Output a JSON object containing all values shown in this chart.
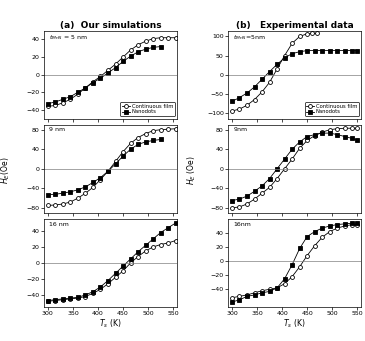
{
  "x_ticks": [
    300,
    350,
    400,
    450,
    500,
    550
  ],
  "sim_5nm_cf_x": [
    300,
    315,
    330,
    345,
    360,
    375,
    390,
    405,
    420,
    435,
    450,
    465,
    480,
    495,
    510,
    525,
    540,
    555
  ],
  "sim_5nm_cf_y": [
    -36,
    -35,
    -32,
    -28,
    -22,
    -15,
    -8,
    -2,
    5,
    12,
    20,
    28,
    34,
    38,
    41,
    42,
    42,
    42
  ],
  "sim_5nm_nd_x": [
    300,
    315,
    330,
    345,
    360,
    375,
    390,
    405,
    420,
    435,
    450,
    465,
    480,
    495,
    510,
    525
  ],
  "sim_5nm_nd_y": [
    -33,
    -31,
    -28,
    -25,
    -20,
    -15,
    -9,
    -4,
    2,
    8,
    15,
    21,
    26,
    29,
    31,
    32
  ],
  "sim_9nm_cf_x": [
    300,
    315,
    330,
    345,
    360,
    375,
    390,
    405,
    420,
    435,
    450,
    465,
    480,
    495,
    510,
    525,
    540,
    555
  ],
  "sim_9nm_cf_y": [
    -75,
    -74,
    -72,
    -68,
    -60,
    -50,
    -38,
    -22,
    -5,
    15,
    35,
    52,
    64,
    72,
    78,
    80,
    81,
    82
  ],
  "sim_9nm_nd_x": [
    300,
    315,
    330,
    345,
    360,
    375,
    390,
    405,
    420,
    435,
    450,
    465,
    480,
    495,
    510,
    525
  ],
  "sim_9nm_nd_y": [
    -53,
    -52,
    -50,
    -47,
    -43,
    -37,
    -28,
    -18,
    -5,
    10,
    26,
    40,
    50,
    55,
    58,
    60
  ],
  "sim_16nm_cf_x": [
    300,
    315,
    330,
    345,
    360,
    375,
    390,
    405,
    420,
    435,
    450,
    465,
    480,
    495,
    510,
    525,
    540,
    555
  ],
  "sim_16nm_cf_y": [
    -48,
    -47,
    -46,
    -45,
    -44,
    -42,
    -38,
    -33,
    -26,
    -18,
    -10,
    0,
    8,
    15,
    20,
    23,
    25,
    28
  ],
  "sim_16nm_nd_x": [
    300,
    315,
    330,
    345,
    360,
    375,
    390,
    405,
    420,
    435,
    450,
    465,
    480,
    495,
    510,
    525,
    540,
    555
  ],
  "sim_16nm_nd_y": [
    -47,
    -46,
    -45,
    -44,
    -43,
    -40,
    -36,
    -30,
    -22,
    -13,
    -4,
    5,
    14,
    22,
    30,
    38,
    44,
    50
  ],
  "exp_5nm_cf_x": [
    300,
    315,
    330,
    345,
    360,
    375,
    390,
    405,
    420,
    435,
    450,
    460,
    470
  ],
  "exp_5nm_cf_y": [
    -95,
    -90,
    -80,
    -65,
    -45,
    -20,
    15,
    50,
    82,
    100,
    107,
    108,
    108
  ],
  "exp_5nm_nd_x": [
    300,
    315,
    330,
    345,
    360,
    375,
    390,
    405,
    420,
    435,
    450,
    465,
    480,
    495,
    510,
    525,
    540,
    550
  ],
  "exp_5nm_nd_y": [
    -70,
    -60,
    -48,
    -32,
    -12,
    8,
    27,
    44,
    55,
    60,
    63,
    63,
    63,
    63,
    63,
    63,
    63,
    63
  ],
  "exp_9nm_cf_x": [
    300,
    315,
    330,
    345,
    360,
    375,
    390,
    405,
    420,
    435,
    450,
    465,
    480,
    495,
    510,
    525,
    540,
    550
  ],
  "exp_9nm_cf_y": [
    -80,
    -78,
    -72,
    -62,
    -50,
    -38,
    -20,
    0,
    20,
    42,
    58,
    68,
    75,
    80,
    82,
    83,
    83,
    83
  ],
  "exp_9nm_nd_x": [
    300,
    315,
    330,
    345,
    360,
    375,
    390,
    405,
    420,
    435,
    450,
    465,
    480,
    495,
    510,
    525,
    540,
    550
  ],
  "exp_9nm_nd_y": [
    -65,
    -62,
    -56,
    -46,
    -35,
    -20,
    0,
    20,
    40,
    55,
    66,
    70,
    73,
    73,
    70,
    66,
    62,
    58
  ],
  "exp_16nm_cf_x": [
    300,
    315,
    330,
    345,
    360,
    375,
    390,
    405,
    420,
    435,
    450,
    465,
    480,
    495,
    510,
    525,
    540,
    550
  ],
  "exp_16nm_cf_y": [
    -52,
    -50,
    -48,
    -45,
    -42,
    -40,
    -38,
    -32,
    -22,
    -8,
    8,
    22,
    34,
    42,
    47,
    50,
    52,
    52
  ],
  "exp_16nm_nd_x": [
    300,
    315,
    330,
    345,
    360,
    375,
    390,
    405,
    420,
    435,
    450,
    465,
    480,
    495,
    510,
    525,
    540,
    550
  ],
  "exp_16nm_nd_y": [
    -58,
    -55,
    -50,
    -48,
    -45,
    -43,
    -38,
    -25,
    -5,
    18,
    35,
    42,
    47,
    50,
    52,
    53,
    54,
    54
  ],
  "label_cf": "Continuous film",
  "label_nd": "Nanodots",
  "ylim_a1": [
    -50,
    50
  ],
  "ylim_a2": [
    -90,
    90
  ],
  "ylim_a3": [
    -55,
    55
  ],
  "ylim_b1": [
    -115,
    115
  ],
  "ylim_b2": [
    -90,
    90
  ],
  "ylim_b3": [
    -65,
    60
  ],
  "yticks_a1": [
    -40,
    -20,
    0,
    20,
    40
  ],
  "yticks_a2": [
    -80,
    -40,
    0,
    40,
    80
  ],
  "yticks_a3": [
    -40,
    -20,
    0,
    20,
    40
  ],
  "yticks_b1": [
    -100,
    -50,
    0,
    50,
    100
  ],
  "yticks_b2": [
    -80,
    -40,
    0,
    40,
    80
  ],
  "yticks_b3": [
    -40,
    -20,
    0,
    20,
    40
  ]
}
